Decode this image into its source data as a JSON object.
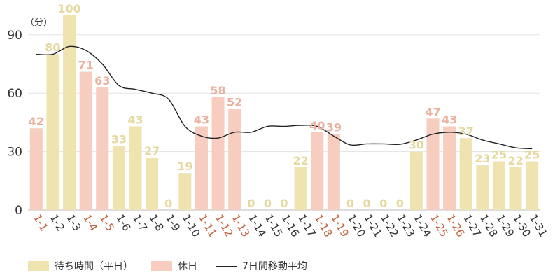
{
  "chart_data": {
    "type": "bar",
    "unit_label": "（分）",
    "ylim": [
      0,
      100
    ],
    "yticks": [
      0,
      30,
      60,
      90
    ],
    "grid": true,
    "categories": [
      "1-1",
      "1-2",
      "1-3",
      "1-4",
      "1-5",
      "1-6",
      "1-7",
      "1-8",
      "1-9",
      "1-10",
      "1-11",
      "1-12",
      "1-13",
      "1-14",
      "1-15",
      "1-16",
      "1-17",
      "1-18",
      "1-19",
      "1-20",
      "1-21",
      "1-22",
      "1-23",
      "1-24",
      "1-25",
      "1-26",
      "1-27",
      "1-28",
      "1-29",
      "1-30",
      "1-31"
    ],
    "values": [
      42,
      80,
      100,
      71,
      63,
      33,
      43,
      27,
      0,
      19,
      43,
      58,
      52,
      0,
      0,
      0,
      22,
      40,
      39,
      0,
      0,
      0,
      0,
      30,
      47,
      43,
      37,
      23,
      25,
      22,
      25
    ],
    "holiday": [
      true,
      false,
      false,
      true,
      true,
      false,
      false,
      false,
      false,
      false,
      true,
      true,
      true,
      false,
      false,
      false,
      false,
      true,
      true,
      false,
      false,
      false,
      false,
      false,
      true,
      true,
      false,
      false,
      false,
      false,
      false
    ],
    "moving_average": [
      80,
      80,
      84,
      82,
      75,
      64,
      62,
      60,
      57,
      43,
      38,
      37,
      40,
      40,
      43,
      43,
      43.5,
      43,
      38,
      33.5,
      34,
      34,
      33.8,
      36,
      39,
      40,
      39,
      36,
      34,
      32,
      31.5
    ],
    "colors": {
      "weekday_bar": "#efe3b0",
      "weekday_label": "#e6d9a0",
      "holiday_bar": "#f6cdbf",
      "holiday_label": "#ebb09d",
      "holiday_tick": "#c5603a",
      "weekday_tick": "#333333",
      "line": "#222222",
      "grid": "#e3e3e3"
    }
  },
  "legend": {
    "weekday": "待ち時間（平日）",
    "holiday": "休日",
    "average": "7日間移動平均"
  }
}
